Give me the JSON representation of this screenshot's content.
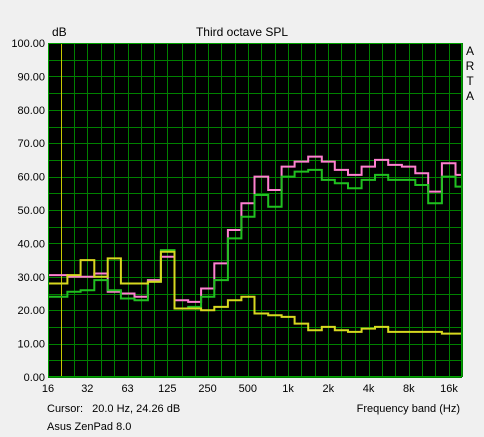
{
  "window": {
    "title": "Third octave SPL",
    "brand_letters": [
      "A",
      "R",
      "T",
      "A"
    ],
    "cursor_label": "Cursor:",
    "cursor_value": "20.0 Hz, 24.26 dB",
    "device": "Asus ZenPad 8.0"
  },
  "chart_data": {
    "type": "line",
    "step": true,
    "title": "Third octave SPL",
    "xlabel": "Frequency band (Hz)",
    "ylabel": "dB",
    "ylim": [
      0,
      100
    ],
    "xscale": "log",
    "grid": true,
    "background": "#000000",
    "grid_color": "#008000",
    "x_ticks": [
      {
        "value": 16,
        "label": "16"
      },
      {
        "value": 31.5,
        "label": "32"
      },
      {
        "value": 63,
        "label": "63"
      },
      {
        "value": 125,
        "label": "125"
      },
      {
        "value": 250,
        "label": "250"
      },
      {
        "value": 500,
        "label": "500"
      },
      {
        "value": 1000,
        "label": "1k"
      },
      {
        "value": 2000,
        "label": "2k"
      },
      {
        "value": 4000,
        "label": "4k"
      },
      {
        "value": 8000,
        "label": "8k"
      },
      {
        "value": 16000,
        "label": "16k"
      }
    ],
    "y_ticks": [
      {
        "value": 0,
        "label": "0.00"
      },
      {
        "value": 10,
        "label": "10.00"
      },
      {
        "value": 20,
        "label": "20.00"
      },
      {
        "value": 30,
        "label": "30.00"
      },
      {
        "value": 40,
        "label": "40.00"
      },
      {
        "value": 50,
        "label": "50.00"
      },
      {
        "value": 60,
        "label": "60.00"
      },
      {
        "value": 70,
        "label": "70.00"
      },
      {
        "value": 80,
        "label": "80.00"
      },
      {
        "value": 90,
        "label": "90.00"
      },
      {
        "value": 100,
        "label": "100.00"
      }
    ],
    "bands": [
      16,
      20,
      25,
      31.5,
      40,
      50,
      63,
      80,
      100,
      125,
      160,
      200,
      250,
      315,
      400,
      500,
      630,
      800,
      1000,
      1250,
      1600,
      2000,
      2500,
      3150,
      4000,
      5000,
      6300,
      8000,
      10000,
      12500,
      16000,
      20000
    ],
    "series": [
      {
        "color": "#ff80d0",
        "values": [
          30.5,
          30.5,
          30,
          30,
          31,
          25.5,
          25,
          24,
          29,
          36,
          23,
          22.5,
          26.5,
          34,
          44,
          52,
          60,
          56,
          63,
          64.5,
          66,
          64.5,
          62,
          60.5,
          63,
          65,
          63.5,
          63,
          61,
          55.5,
          64,
          60.5
        ]
      },
      {
        "color": "#20c020",
        "values": [
          24,
          24,
          25.5,
          26,
          29,
          26,
          23.5,
          23,
          28.5,
          38,
          20.5,
          21,
          24,
          29,
          41.5,
          48,
          54.5,
          51,
          60,
          61.5,
          62,
          59,
          58,
          56.5,
          59,
          60.5,
          59,
          59,
          57.5,
          52,
          60,
          57
        ]
      },
      {
        "color": "#d8d820",
        "values": [
          28,
          28,
          30.5,
          35,
          30,
          35.5,
          28,
          28,
          28.5,
          37.5,
          20.5,
          20.5,
          20,
          21,
          23,
          24,
          19,
          18.5,
          18,
          16,
          14,
          15,
          14,
          13.5,
          14.5,
          15,
          13.5,
          13.5,
          13.5,
          13.5,
          13,
          13
        ]
      }
    ]
  }
}
